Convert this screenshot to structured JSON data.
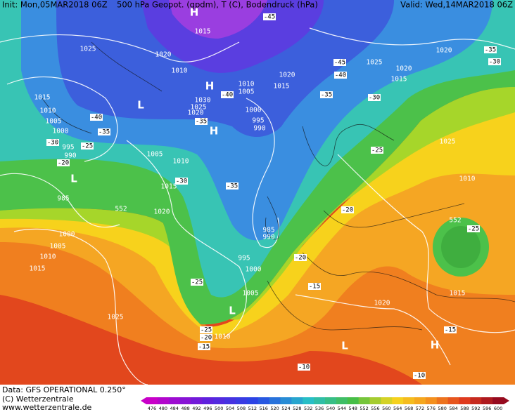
{
  "header": {
    "init": "Init: Mon,05MAR2018 06Z",
    "title": "500 hPa Geopot. (gpdm), T (C), Bodendruck (hPa)",
    "valid": "Valid: Wed,14MAR2018 06Z"
  },
  "footer": {
    "data": "Data: GFS OPERATIONAL 0.250°",
    "copyright": "(C) Wetterzentrale",
    "url": "www.wetterzentrale.de"
  },
  "legend": {
    "levels": [
      476,
      480,
      484,
      488,
      492,
      496,
      500,
      504,
      508,
      512,
      516,
      520,
      524,
      528,
      532,
      536,
      540,
      544,
      548,
      552,
      556,
      560,
      564,
      568,
      572,
      576,
      580,
      584,
      588,
      592,
      596,
      600
    ]
  },
  "pressure_labels": [
    "1015",
    "1025",
    "1020",
    "1010",
    "1030",
    "1025",
    "1020",
    "1010",
    "1005",
    "1000",
    "995",
    "990",
    "1020",
    "1015",
    "1025",
    "1020",
    "1015",
    "1020",
    "1015",
    "1010",
    "1005",
    "1000",
    "995",
    "990",
    "1005",
    "1010",
    "1015",
    "1020",
    "985",
    "1000",
    "1005",
    "1010",
    "1015",
    "1025",
    "985",
    "990",
    "995",
    "1000",
    "1005",
    "1010",
    "1020",
    "1025",
    "1010",
    "1015",
    "552",
    "552"
  ],
  "temperature_labels": [
    "-45",
    "-35",
    "-30",
    "-40",
    "-35",
    "-30",
    "-25",
    "-20",
    "-40",
    "-35",
    "-45",
    "-40",
    "-35",
    "-30",
    "-25",
    "-30",
    "-35",
    "-20",
    "-25",
    "-20",
    "-15",
    "-25",
    "-25",
    "-20",
    "-15",
    "-15",
    "-10",
    "-10"
  ],
  "pressure_centers": [
    "H",
    "H",
    "L",
    "L",
    "L",
    "L",
    "H",
    "H"
  ]
}
